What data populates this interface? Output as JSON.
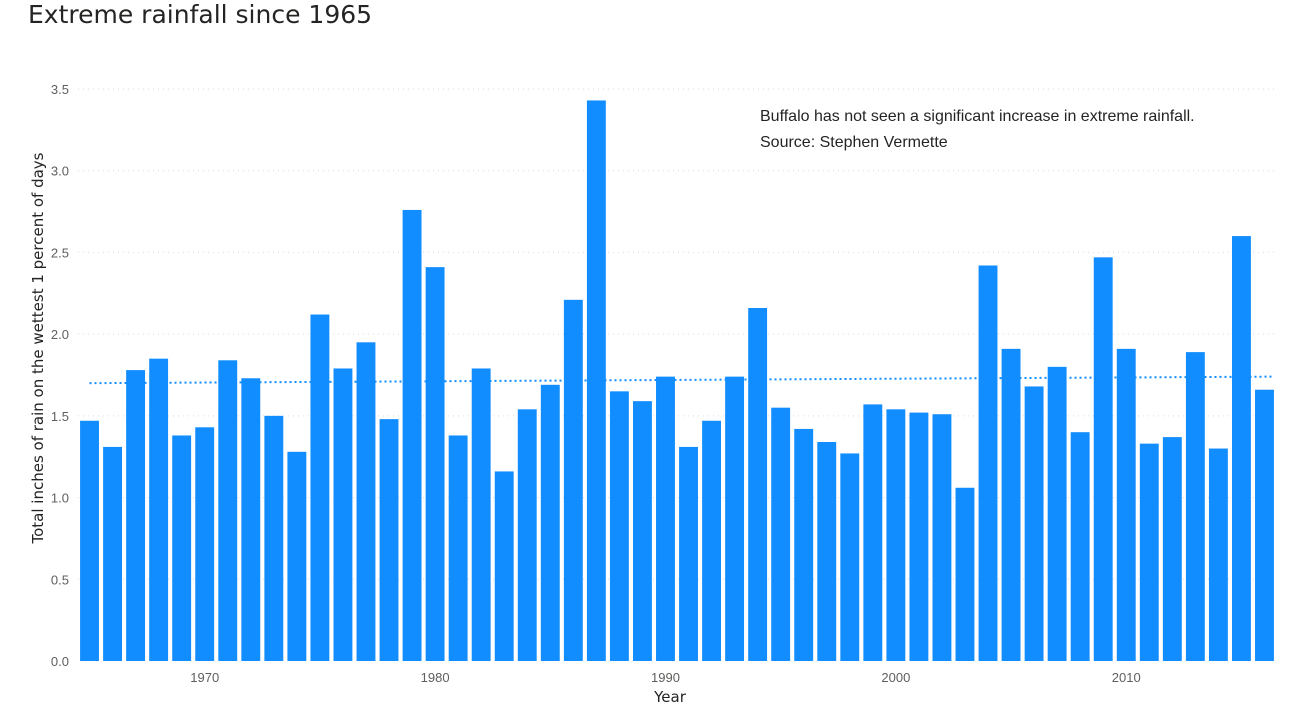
{
  "chart_data": {
    "type": "bar",
    "title": "Extreme rainfall since 1965",
    "xlabel": "Year",
    "ylabel": "Total inches of rain on the wettest 1 percent of days",
    "ylim": [
      0,
      3.5
    ],
    "yticks": [
      "0.0",
      "0.5",
      "1.0",
      "1.5",
      "2.0",
      "2.5",
      "3.0",
      "3.5"
    ],
    "xticks": [
      "1970",
      "1980",
      "1990",
      "2000",
      "2010"
    ],
    "grid": true,
    "bar_color": "#118dff",
    "annotation": [
      "Buffalo has not seen a significant increase in extreme rainfall.",
      "Source: Stephen Vermette"
    ],
    "categories": [
      1965,
      1966,
      1967,
      1968,
      1969,
      1970,
      1971,
      1972,
      1973,
      1974,
      1975,
      1976,
      1977,
      1978,
      1979,
      1980,
      1981,
      1982,
      1983,
      1984,
      1985,
      1986,
      1987,
      1988,
      1989,
      1990,
      1991,
      1992,
      1993,
      1994,
      1995,
      1996,
      1997,
      1998,
      1999,
      2000,
      2001,
      2002,
      2003,
      2004,
      2005,
      2006,
      2007,
      2008,
      2009,
      2010,
      2011,
      2012,
      2013,
      2014,
      2015,
      2016
    ],
    "values": [
      1.47,
      1.31,
      1.78,
      1.85,
      1.38,
      1.43,
      1.84,
      1.73,
      1.5,
      1.28,
      2.12,
      1.79,
      1.95,
      1.48,
      2.76,
      2.41,
      1.38,
      1.79,
      1.16,
      1.54,
      1.69,
      2.21,
      3.43,
      1.65,
      1.59,
      1.74,
      1.31,
      1.47,
      1.74,
      2.16,
      1.55,
      1.42,
      1.34,
      1.27,
      1.57,
      1.54,
      1.52,
      1.51,
      1.06,
      2.42,
      1.91,
      1.68,
      1.8,
      1.4,
      2.47,
      1.91,
      1.33,
      1.37,
      1.89,
      1.3,
      2.6,
      1.66
    ],
    "trend": {
      "type": "linear",
      "start": 1.7,
      "end": 1.74
    }
  }
}
